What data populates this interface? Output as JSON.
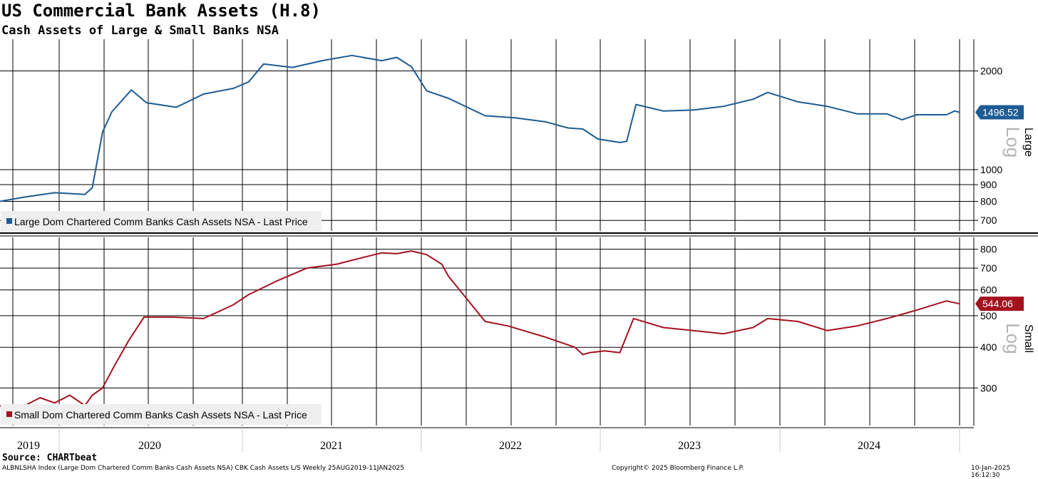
{
  "header": {
    "title": "US Commercial Bank Assets (H.8)",
    "subtitle": "Cash Assets of Large & Small Banks NSA"
  },
  "footer": {
    "source": "Source: CHARTbeat",
    "ticker_info": "ALBNLSHA Index (Large Dom Chartered Comm Banks Cash Assets NSA) CBK Cash Assets L/S  Weekly 25AUG2019-11JAN2025",
    "copyright": "Copyright© 2025 Bloomberg Finance L.P.",
    "timestamp": "10-Jan-2025 16:12:30"
  },
  "colors": {
    "large": "#1d5b93",
    "small": "#a4121f",
    "legend_bg": "#efefef"
  },
  "chart_data": [
    {
      "type": "line",
      "panel": "Large",
      "scale": "log",
      "legend": "Large Dom Chartered Comm Banks Cash Assets NSA - Last Price",
      "axis_label": "Large",
      "scale_label": "Log",
      "last_value_label": "1496.52",
      "last_value": 1496.52,
      "yticks": [
        700,
        800,
        900,
        1000,
        2000
      ],
      "yticklabels": [
        "700",
        "800",
        "900",
        "1000",
        "2000"
      ],
      "ylim": [
        650,
        2500
      ],
      "x": [
        "2019-08-25",
        "2019-10-15",
        "2019-12-15",
        "2020-02-15",
        "2020-03-01",
        "2020-03-22",
        "2020-04-10",
        "2020-05-20",
        "2020-06-20",
        "2020-08-20",
        "2020-10-15",
        "2020-12-15",
        "2021-01-15",
        "2021-02-15",
        "2021-04-15",
        "2021-06-15",
        "2021-08-15",
        "2021-10-15",
        "2021-11-15",
        "2021-12-15",
        "2022-01-15",
        "2022-03-01",
        "2022-05-15",
        "2022-07-15",
        "2022-09-15",
        "2022-11-01",
        "2022-12-01",
        "2023-01-01",
        "2023-02-15",
        "2023-03-01",
        "2023-03-20",
        "2023-05-15",
        "2023-07-15",
        "2023-09-15",
        "2023-11-15",
        "2023-12-15",
        "2024-02-15",
        "2024-04-15",
        "2024-06-15",
        "2024-08-15",
        "2024-09-15",
        "2024-10-15",
        "2024-12-15",
        "2025-01-01",
        "2025-01-11"
      ],
      "y": [
        800,
        825,
        850,
        840,
        880,
        1300,
        1500,
        1750,
        1600,
        1550,
        1700,
        1770,
        1850,
        2100,
        2050,
        2150,
        2230,
        2150,
        2200,
        2060,
        1740,
        1650,
        1460,
        1440,
        1400,
        1340,
        1330,
        1240,
        1210,
        1220,
        1580,
        1510,
        1520,
        1560,
        1640,
        1720,
        1610,
        1560,
        1480,
        1480,
        1420,
        1470,
        1470,
        1510,
        1496.52
      ]
    },
    {
      "type": "line",
      "panel": "Small",
      "scale": "log",
      "legend": "Small Dom Chartered Comm Banks Cash Assets NSA - Last Price",
      "axis_label": "Small",
      "scale_label": "Log",
      "last_value_label": "544.06",
      "last_value": 544.06,
      "yticks": [
        300,
        400,
        500,
        600,
        700,
        800
      ],
      "yticklabels": [
        "300",
        "400",
        "500",
        "600",
        "700",
        "800"
      ],
      "ylim": [
        230,
        870
      ],
      "x": [
        "2019-08-25",
        "2019-09-15",
        "2019-10-15",
        "2019-11-15",
        "2019-12-15",
        "2020-01-15",
        "2020-02-15",
        "2020-03-01",
        "2020-03-22",
        "2020-04-15",
        "2020-05-15",
        "2020-06-15",
        "2020-08-15",
        "2020-10-15",
        "2020-12-15",
        "2021-01-15",
        "2021-03-15",
        "2021-05-15",
        "2021-07-15",
        "2021-09-15",
        "2021-10-15",
        "2021-11-15",
        "2021-12-15",
        "2022-01-15",
        "2022-02-15",
        "2022-03-01",
        "2022-05-15",
        "2022-07-01",
        "2022-09-15",
        "2022-11-15",
        "2022-12-01",
        "2022-12-15",
        "2023-01-15",
        "2023-02-15",
        "2023-03-15",
        "2023-05-15",
        "2023-07-15",
        "2023-09-15",
        "2023-11-15",
        "2023-12-15",
        "2024-02-15",
        "2024-04-15",
        "2024-06-15",
        "2024-08-15",
        "2024-10-15",
        "2024-12-15",
        "2025-01-11"
      ],
      "y": [
        265,
        250,
        265,
        280,
        270,
        285,
        265,
        285,
        300,
        350,
        420,
        495,
        495,
        490,
        540,
        580,
        640,
        700,
        720,
        760,
        780,
        775,
        790,
        770,
        720,
        660,
        480,
        465,
        430,
        400,
        380,
        385,
        390,
        385,
        490,
        460,
        450,
        440,
        460,
        490,
        480,
        450,
        465,
        490,
        520,
        555,
        544.06
      ]
    }
  ],
  "x_axis": {
    "years": [
      "2019",
      "2020",
      "2021",
      "2022",
      "2023",
      "2024"
    ]
  }
}
